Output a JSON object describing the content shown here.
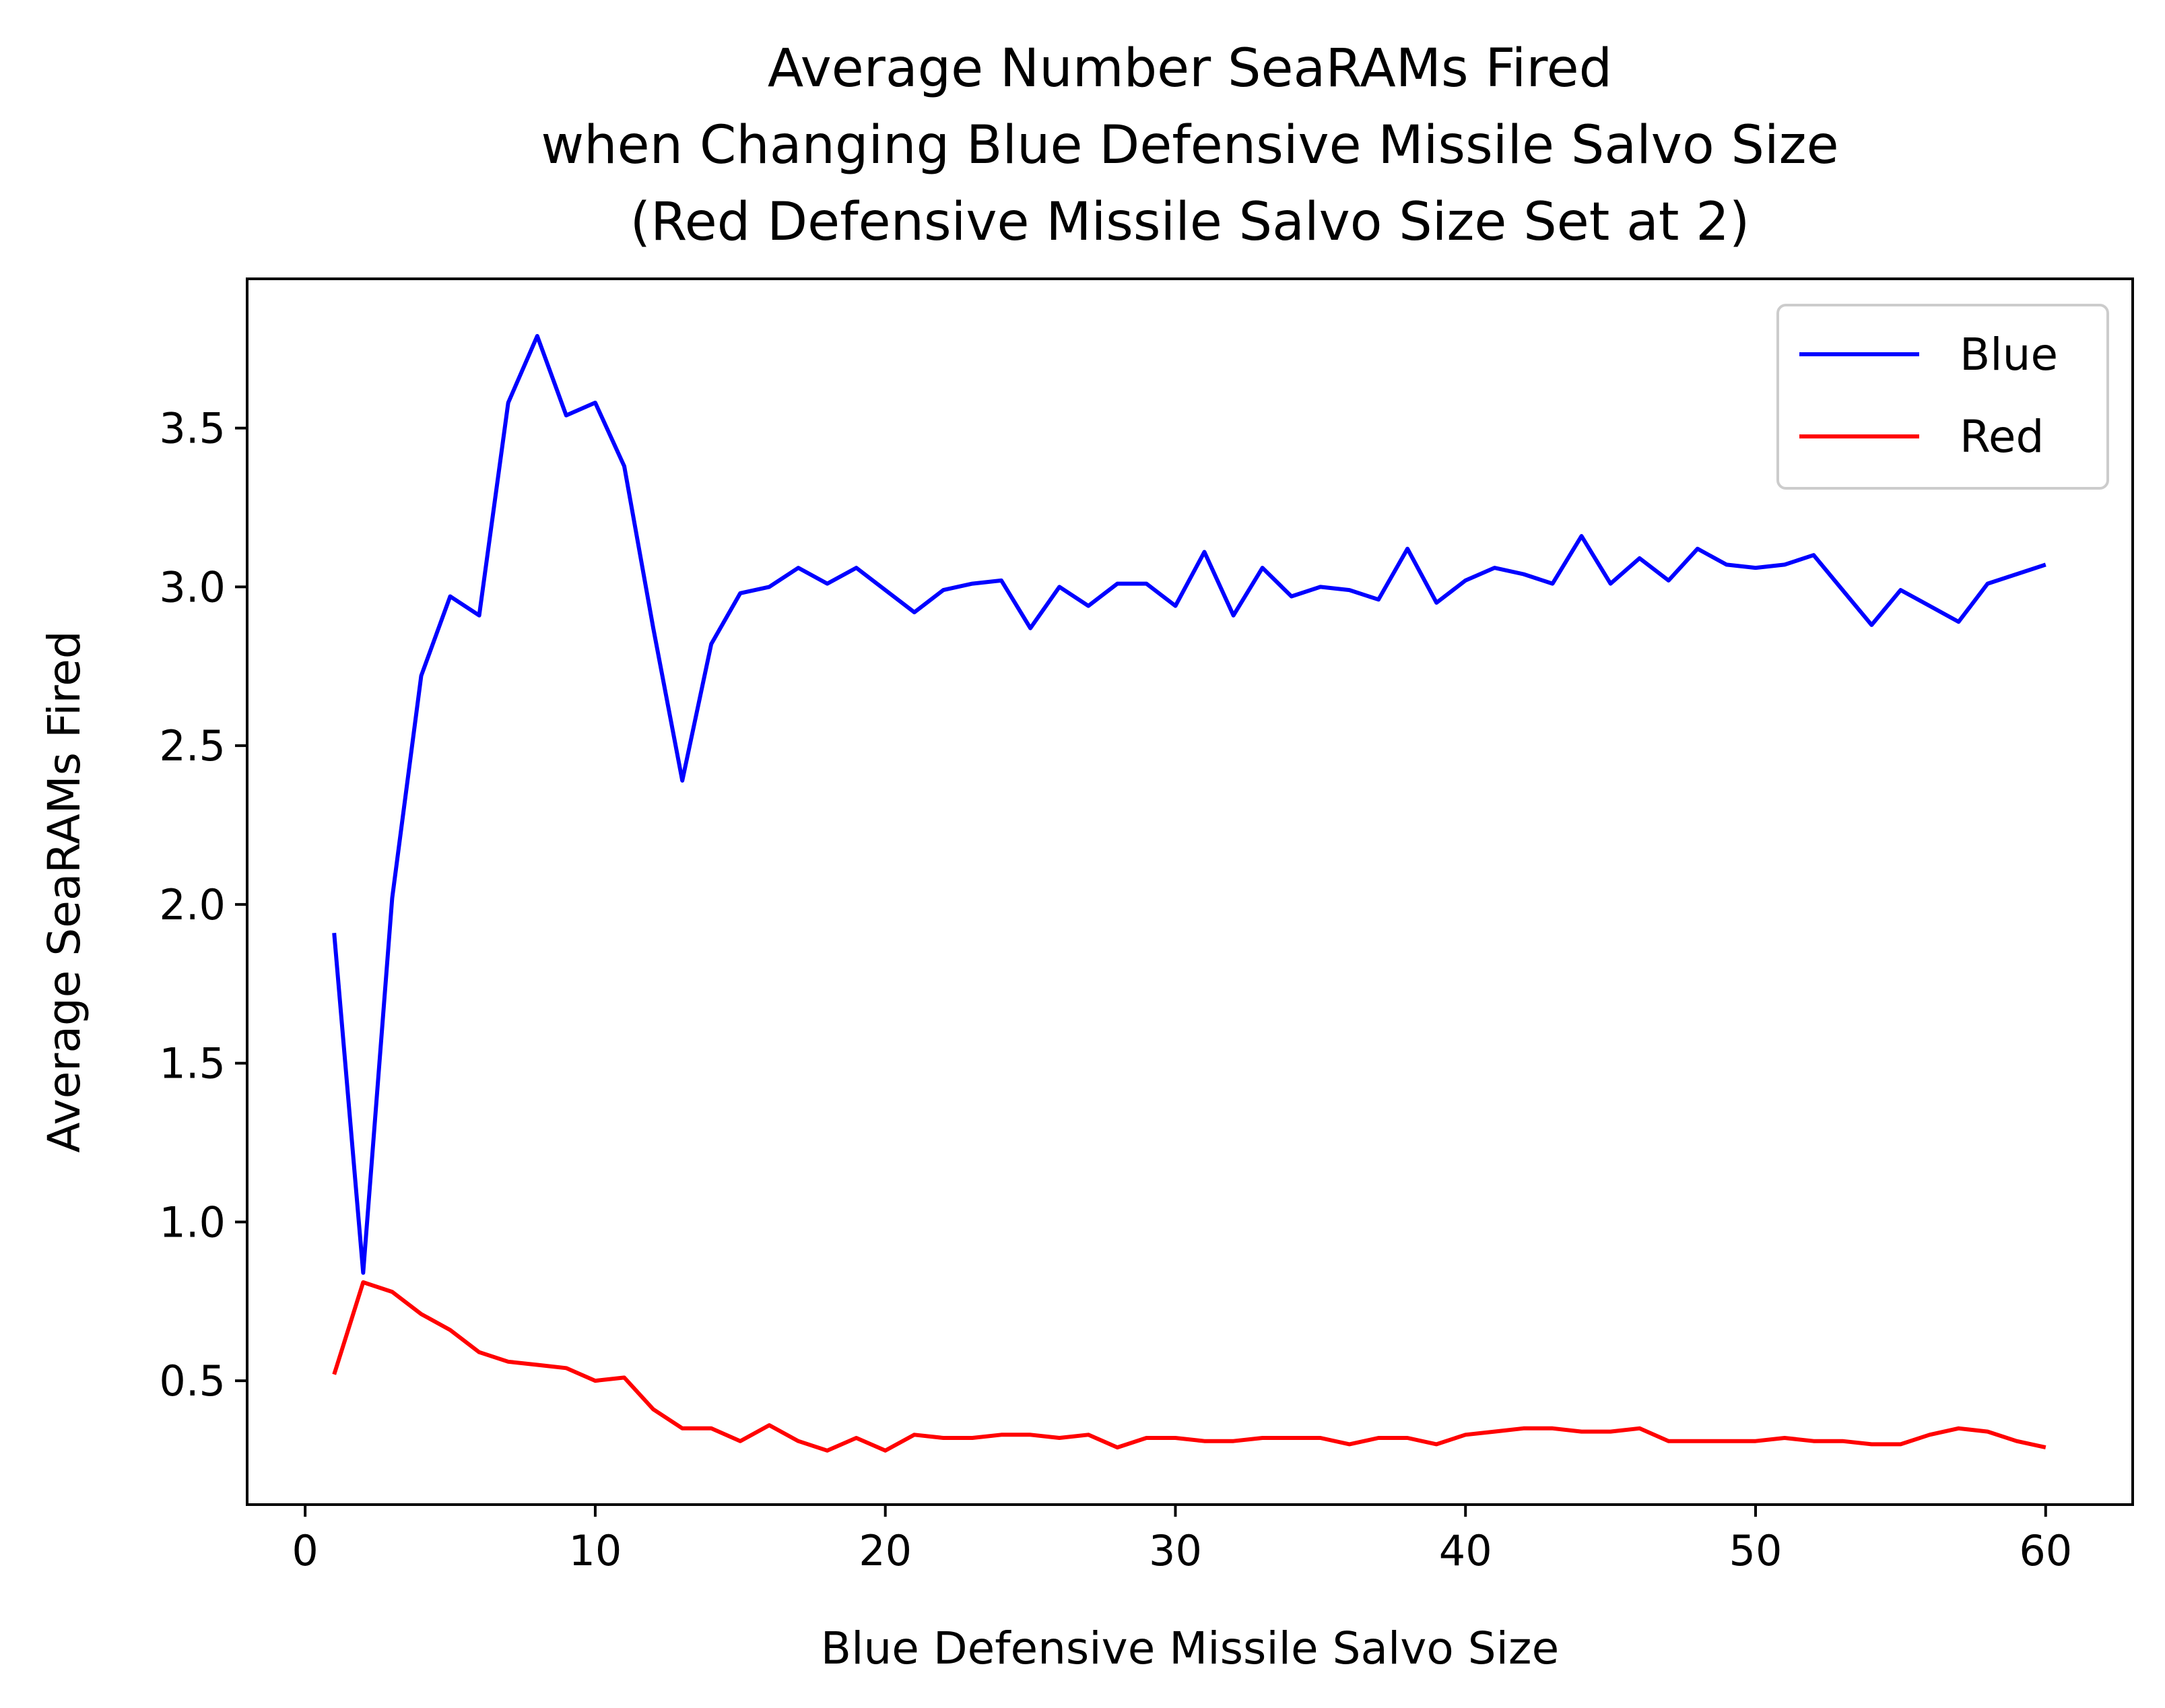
{
  "chart_data": {
    "type": "line",
    "title_lines": [
      "Average Number SeaRAMs Fired",
      "when Changing Blue Defensive Missile Salvo Size",
      "(Red Defensive Missile Salvo Size Set at 2)"
    ],
    "xlabel": "Blue Defensive Missile Salvo Size",
    "ylabel": "Average SeaRAMs Fired",
    "xlim": [
      -2,
      63
    ],
    "ylim": [
      0.11,
      3.97
    ],
    "xticks": [
      0,
      10,
      20,
      30,
      40,
      50,
      60
    ],
    "xtick_labels": [
      "0",
      "10",
      "20",
      "30",
      "40",
      "50",
      "60"
    ],
    "yticks": [
      0.5,
      1.0,
      1.5,
      2.0,
      2.5,
      3.0,
      3.5
    ],
    "ytick_labels": [
      "0.5",
      "1.0",
      "1.5",
      "2.0",
      "2.5",
      "3.0",
      "3.5"
    ],
    "grid": false,
    "legend_position": "top-right",
    "x": [
      1,
      2,
      3,
      4,
      5,
      6,
      7,
      8,
      9,
      10,
      11,
      12,
      13,
      14,
      15,
      16,
      17,
      18,
      19,
      20,
      21,
      22,
      23,
      24,
      25,
      26,
      27,
      28,
      29,
      30,
      31,
      32,
      33,
      34,
      35,
      36,
      37,
      38,
      39,
      40,
      41,
      42,
      43,
      44,
      45,
      46,
      47,
      48,
      49,
      50,
      51,
      52,
      53,
      54,
      55,
      56,
      57,
      58,
      59,
      60
    ],
    "series": [
      {
        "name": "Blue",
        "color": "#0000ff",
        "values": [
          1.91,
          0.84,
          2.02,
          2.72,
          2.97,
          2.91,
          3.58,
          3.79,
          3.54,
          3.58,
          3.38,
          2.87,
          2.39,
          2.82,
          2.98,
          3.0,
          3.06,
          3.01,
          3.06,
          2.99,
          2.92,
          2.99,
          3.01,
          3.02,
          2.87,
          3.0,
          2.94,
          3.01,
          3.01,
          2.94,
          3.11,
          2.91,
          3.06,
          2.97,
          3.0,
          2.99,
          2.96,
          3.12,
          2.95,
          3.02,
          3.06,
          3.04,
          3.01,
          3.16,
          3.01,
          3.09,
          3.02,
          3.12,
          3.07,
          3.06,
          3.07,
          3.1,
          2.99,
          2.88,
          2.99,
          2.94,
          2.89,
          3.01,
          3.04,
          3.07
        ]
      },
      {
        "name": "Red",
        "color": "#ff0000",
        "values": [
          0.52,
          0.81,
          0.78,
          0.71,
          0.66,
          0.59,
          0.56,
          0.55,
          0.54,
          0.5,
          0.51,
          0.41,
          0.35,
          0.35,
          0.31,
          0.36,
          0.31,
          0.28,
          0.32,
          0.28,
          0.33,
          0.32,
          0.32,
          0.33,
          0.33,
          0.32,
          0.33,
          0.29,
          0.32,
          0.32,
          0.31,
          0.31,
          0.32,
          0.32,
          0.32,
          0.3,
          0.32,
          0.32,
          0.3,
          0.33,
          0.34,
          0.35,
          0.35,
          0.34,
          0.34,
          0.35,
          0.31,
          0.31,
          0.31,
          0.31,
          0.32,
          0.31,
          0.31,
          0.3,
          0.3,
          0.33,
          0.35,
          0.34,
          0.31,
          0.29
        ]
      }
    ]
  }
}
